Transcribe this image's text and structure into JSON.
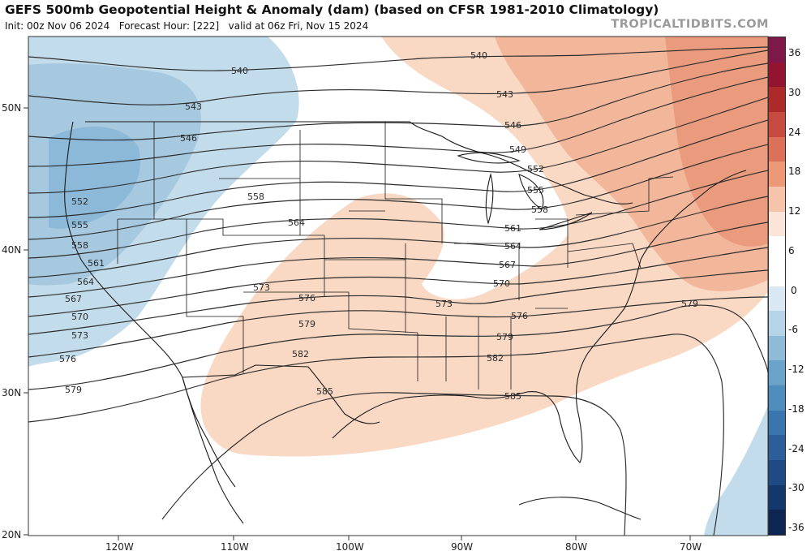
{
  "header": {
    "title": "GEFS 500mb Geopotential Height & Anomaly (dam) (based on CFSR 1981-2010 Climatology)",
    "init": "Init: 00z Nov 06 2024",
    "forecast_hour": "Forecast Hour: [222]",
    "valid": "valid at 06z Fri, Nov 15 2024",
    "brand": "TROPICALTIDBITS.COM"
  },
  "axes": {
    "lat_labels": [
      "50N",
      "40N",
      "30N",
      "20N"
    ],
    "lon_labels": [
      "120W",
      "110W",
      "100W",
      "90W",
      "80W",
      "70W"
    ]
  },
  "contours": {
    "line_color": "#2b2b2b",
    "labels": {
      "c540a": "540",
      "c540b": "540",
      "c543a": "543",
      "c543b": "543",
      "c546a": "546",
      "c546b": "546",
      "c549": "549",
      "c552a": "552",
      "c552b": "552",
      "c555a": "555",
      "c555b": "555",
      "c558a": "558",
      "c558b": "558",
      "c558c": "558",
      "c561a": "561",
      "c561b": "561",
      "c564a": "564",
      "c564b": "564",
      "c564c": "564",
      "c567a": "567",
      "c567b": "567",
      "c570a": "570",
      "c570b": "570",
      "c573a": "573",
      "c573b": "573",
      "c573c": "573",
      "c576a": "576",
      "c576b": "576",
      "c576c": "576",
      "c579a": "579",
      "c579b": "579",
      "c579c": "579",
      "c579d": "579",
      "c582a": "582",
      "c582b": "582",
      "c585a": "585",
      "c585b": "585"
    }
  },
  "colorbar": {
    "labels": [
      "36",
      "30",
      "24",
      "18",
      "12",
      "6",
      "0",
      "-6",
      "-12",
      "-18",
      "-24",
      "-30",
      "-36"
    ],
    "colors": [
      "#7d1848",
      "#921430",
      "#ad2a2b",
      "#c64a40",
      "#db7158",
      "#eb9977",
      "#f6c4aa",
      "#fae5d8",
      "#ffffff",
      "#ffffff",
      "#d9e8f2",
      "#b6d4e7",
      "#8fbbd8",
      "#6aa2c9",
      "#4f8dbd",
      "#3a76ae",
      "#2c5f9a",
      "#1f4a84",
      "#15386c",
      "#0c2551"
    ]
  },
  "anomaly_colors": {
    "negative_light": "#c3dcec",
    "negative_mid": "#a6c9e0",
    "negative_strong": "#8db9d8",
    "positive_light": "#f9d8c4",
    "positive_mid": "#f2b79b",
    "positive_strong": "#ea9b7d"
  }
}
